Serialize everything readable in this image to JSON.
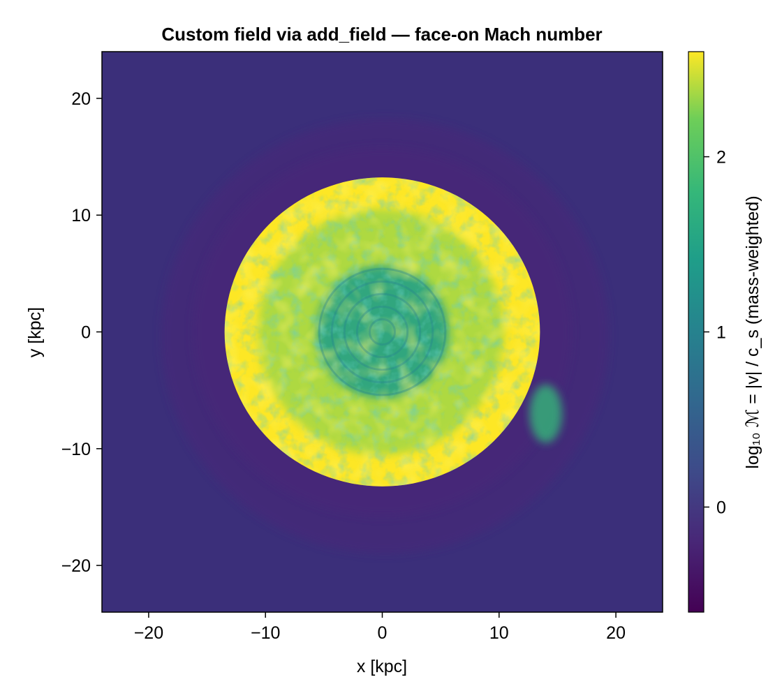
{
  "chart_data": {
    "type": "heatmap",
    "title": "Custom field via add_field — face-on Mach number",
    "xlabel": "x [kpc]",
    "ylabel": "y [kpc]",
    "xlim": [
      -24,
      24
    ],
    "ylim": [
      -24,
      24
    ],
    "x_ticks": [
      -20,
      -10,
      0,
      10,
      20
    ],
    "x_tick_labels": [
      "−20",
      "−10",
      "0",
      "10",
      "20"
    ],
    "y_ticks": [
      -20,
      -10,
      0,
      10,
      20
    ],
    "y_tick_labels": [
      "−20",
      "−10",
      "0",
      "10",
      "20"
    ],
    "grid": false,
    "colormap": "viridis",
    "colorbar": {
      "label": "log₁₀ ℳ = |v| / c_s  (mass-weighted)",
      "range": [
        -0.6,
        2.6
      ],
      "ticks": [
        0,
        1,
        2
      ],
      "tick_labels": [
        "0",
        "1",
        "2"
      ]
    },
    "field_description": {
      "background_log_mach": -0.2,
      "disk_radius_kpc": 13.5,
      "disk_center_kpc": [
        0,
        0
      ],
      "disk_outer_log_mach": 2.4,
      "disk_core_log_mach": 1.3,
      "cavity_log_mach": -0.45
    }
  }
}
